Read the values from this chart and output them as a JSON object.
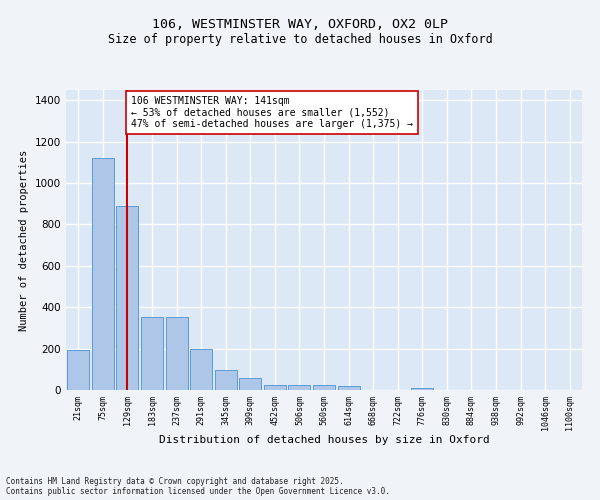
{
  "title1": "106, WESTMINSTER WAY, OXFORD, OX2 0LP",
  "title2": "Size of property relative to detached houses in Oxford",
  "xlabel": "Distribution of detached houses by size in Oxford",
  "ylabel": "Number of detached properties",
  "categories": [
    "21sqm",
    "75sqm",
    "129sqm",
    "183sqm",
    "237sqm",
    "291sqm",
    "345sqm",
    "399sqm",
    "452sqm",
    "506sqm",
    "560sqm",
    "614sqm",
    "668sqm",
    "722sqm",
    "776sqm",
    "830sqm",
    "884sqm",
    "938sqm",
    "992sqm",
    "1046sqm",
    "1100sqm"
  ],
  "values": [
    195,
    1120,
    890,
    355,
    355,
    197,
    97,
    57,
    25,
    22,
    22,
    18,
    0,
    0,
    10,
    0,
    0,
    0,
    0,
    0,
    0
  ],
  "bar_color": "#aec6e8",
  "bar_edge_color": "#5b9bd5",
  "vline_x_index": 2,
  "vline_color": "#cc0000",
  "annotation_text": "106 WESTMINSTER WAY: 141sqm\n← 53% of detached houses are smaller (1,552)\n47% of semi-detached houses are larger (1,375) →",
  "annotation_box_facecolor": "#ffffff",
  "annotation_box_edgecolor": "#cc0000",
  "annotation_fontsize": 7,
  "ylim": [
    0,
    1450
  ],
  "yticks": [
    0,
    200,
    400,
    600,
    800,
    1000,
    1200,
    1400
  ],
  "plot_bg_color": "#dce8f5",
  "fig_bg_color": "#f0f4f8",
  "grid_color": "#ffffff",
  "footer1": "Contains HM Land Registry data © Crown copyright and database right 2025.",
  "footer2": "Contains public sector information licensed under the Open Government Licence v3.0.",
  "title1_fontsize": 9.5,
  "title2_fontsize": 8.5,
  "xlabel_fontsize": 8,
  "ylabel_fontsize": 7.5,
  "xtick_fontsize": 6,
  "ytick_fontsize": 7.5,
  "footer_fontsize": 5.5
}
